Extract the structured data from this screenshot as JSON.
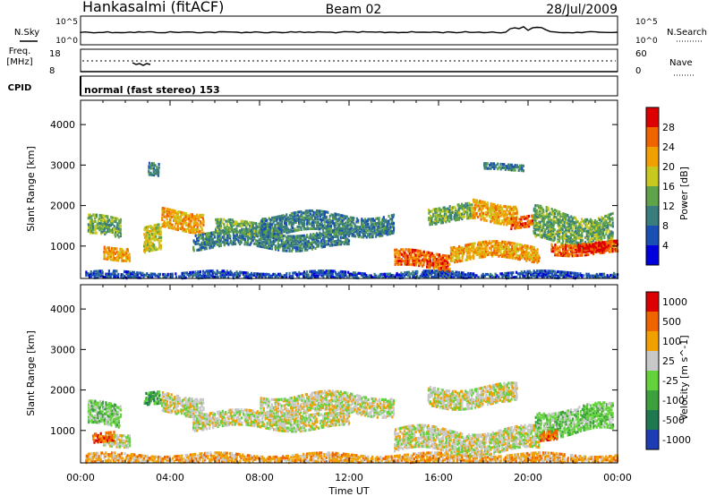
{
  "header": {
    "station": "Hankasalmi (fitACF)",
    "beam": "Beam 02",
    "date": "28/Jul/2009"
  },
  "noise_panel": {
    "left_label": "N.Sky",
    "right_label": "N.Search",
    "left_ticks": [
      "10^5",
      "10^0"
    ],
    "right_ticks": [
      "10^5",
      "10^0"
    ]
  },
  "freq_panel": {
    "left_label_1": "Freq.",
    "left_label_2": "[MHz]",
    "right_label": "Nave",
    "left_ticks": [
      "18",
      "8"
    ],
    "right_ticks": [
      "60",
      "0"
    ]
  },
  "cpid_panel": {
    "label": "CPID",
    "mode_text": "normal (fast stereo) 153"
  },
  "chart_data": [
    {
      "type": "heatmap",
      "name": "power",
      "ylabel": "Slant Range [km]",
      "xlabel": "Time UT",
      "x_ticks": [
        "00:00",
        "04:00",
        "08:00",
        "12:00",
        "16:00",
        "20:00",
        "00:00"
      ],
      "y_ticks": [
        1000,
        2000,
        3000,
        4000
      ],
      "ylim": [
        200,
        4600
      ],
      "colorbar": {
        "label": "Power [dB]",
        "ticks": [
          "4",
          "8",
          "12",
          "16",
          "20",
          "24",
          "28"
        ],
        "colors": [
          "#0000dd",
          "#1a4fb4",
          "#3a7d7d",
          "#5fa34a",
          "#c8c81e",
          "#f0a000",
          "#f06400",
          "#dd0000"
        ]
      },
      "echo_regions": [
        {
          "t_start": 0.2,
          "t_end": 24,
          "r_center": 320,
          "r_width": 120,
          "level": 1
        },
        {
          "t_start": 0.3,
          "t_end": 1.8,
          "r_center": 1500,
          "r_width": 300,
          "level": 3
        },
        {
          "t_start": 1.0,
          "t_end": 2.2,
          "r_center": 900,
          "r_width": 200,
          "level": 5
        },
        {
          "t_start": 2.8,
          "t_end": 3.6,
          "r_center": 1150,
          "r_width": 400,
          "level": 4
        },
        {
          "t_start": 3.6,
          "t_end": 5.5,
          "r_center": 1700,
          "r_width": 300,
          "level": 5
        },
        {
          "t_start": 5.0,
          "t_end": 12.0,
          "r_center": 1200,
          "r_width": 250,
          "level": 2
        },
        {
          "t_start": 6.0,
          "t_end": 9.0,
          "r_center": 1500,
          "r_width": 200,
          "level": 3
        },
        {
          "t_start": 8.0,
          "t_end": 14.0,
          "r_center": 1600,
          "r_width": 300,
          "level": 2
        },
        {
          "t_start": 14.0,
          "t_end": 16.5,
          "r_center": 700,
          "r_width": 250,
          "level": 6
        },
        {
          "t_start": 16.5,
          "t_end": 20.5,
          "r_center": 900,
          "r_width": 250,
          "level": 5
        },
        {
          "t_start": 15.5,
          "t_end": 17.5,
          "r_center": 1850,
          "r_width": 250,
          "level": 3
        },
        {
          "t_start": 17.5,
          "t_end": 19.5,
          "r_center": 1900,
          "r_width": 300,
          "level": 5
        },
        {
          "t_start": 19.2,
          "t_end": 20.2,
          "r_center": 1650,
          "r_width": 180,
          "level": 6
        },
        {
          "t_start": 20.2,
          "t_end": 23.8,
          "r_center": 1500,
          "r_width": 500,
          "level": 3
        },
        {
          "t_start": 21.0,
          "t_end": 24.0,
          "r_center": 1000,
          "r_width": 180,
          "level": 6
        },
        {
          "t_start": 22.2,
          "t_end": 23.6,
          "r_center": 1000,
          "r_width": 140,
          "level": 7
        },
        {
          "t_start": 18.0,
          "t_end": 19.8,
          "r_center": 3000,
          "r_width": 100,
          "level": 2
        },
        {
          "t_start": 3.0,
          "t_end": 3.5,
          "r_center": 2900,
          "r_width": 200,
          "level": 2
        }
      ]
    },
    {
      "type": "heatmap",
      "name": "velocity",
      "ylabel": "Slant Range [km]",
      "xlabel": "Time UT",
      "x_ticks": [
        "00:00",
        "04:00",
        "08:00",
        "12:00",
        "16:00",
        "20:00",
        "00:00"
      ],
      "y_ticks": [
        1000,
        2000,
        3000,
        4000
      ],
      "ylim": [
        200,
        4600
      ],
      "colorbar": {
        "label": "Velocity [m s^-1]",
        "ticks": [
          "1000",
          "500",
          "100",
          "25",
          "-25",
          "-100",
          "-500",
          "-1000"
        ],
        "colors": [
          "#1e3cb4",
          "#1e7850",
          "#3ca03c",
          "#64d23c",
          "#c8c8c8",
          "#f0a000",
          "#f06400",
          "#dd0000"
        ]
      },
      "echo_regions": [
        {
          "t_start": 0.2,
          "t_end": 24,
          "r_center": 350,
          "r_width": 150,
          "level": 5
        },
        {
          "t_start": 0.3,
          "t_end": 1.8,
          "r_center": 1400,
          "r_width": 350,
          "level": 3
        },
        {
          "t_start": 1.0,
          "t_end": 2.2,
          "r_center": 850,
          "r_width": 200,
          "level": 4
        },
        {
          "t_start": 2.8,
          "t_end": 3.6,
          "r_center": 1800,
          "r_width": 200,
          "level": 2
        },
        {
          "t_start": 3.6,
          "t_end": 5.5,
          "r_center": 1700,
          "r_width": 300,
          "level": 4
        },
        {
          "t_start": 5.0,
          "t_end": 12.0,
          "r_center": 1300,
          "r_width": 250,
          "level": 4
        },
        {
          "t_start": 8.0,
          "t_end": 14.0,
          "r_center": 1700,
          "r_width": 300,
          "level": 4
        },
        {
          "t_start": 14.0,
          "t_end": 20.5,
          "r_center": 800,
          "r_width": 350,
          "level": 4
        },
        {
          "t_start": 15.5,
          "t_end": 19.5,
          "r_center": 1900,
          "r_width": 300,
          "level": 4
        },
        {
          "t_start": 20.3,
          "t_end": 23.8,
          "r_center": 1300,
          "r_width": 400,
          "level": 3
        },
        {
          "t_start": 20.5,
          "t_end": 21.3,
          "r_center": 950,
          "r_width": 150,
          "level": 6
        },
        {
          "t_start": 0.5,
          "t_end": 1.5,
          "r_center": 900,
          "r_width": 150,
          "level": 6
        }
      ]
    }
  ]
}
